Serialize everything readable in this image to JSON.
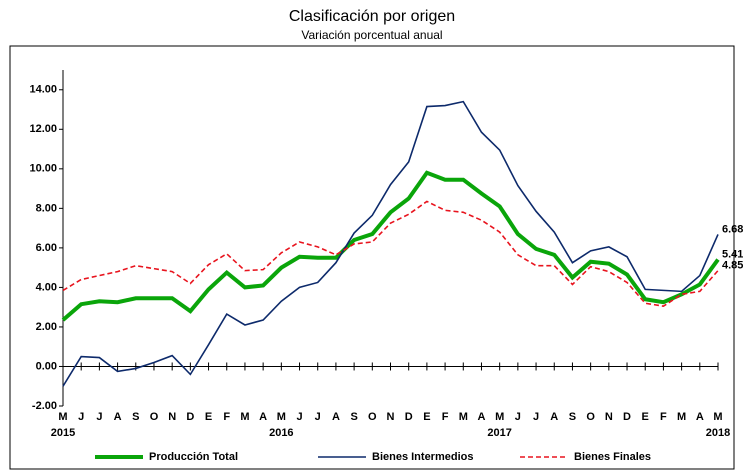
{
  "chart_data": {
    "type": "line",
    "title": "Clasificación por origen",
    "subtitle": "Variación porcentual anual",
    "categories": [
      "M",
      "J",
      "J",
      "A",
      "S",
      "O",
      "N",
      "D",
      "E",
      "F",
      "M",
      "A",
      "M",
      "J",
      "J",
      "A",
      "S",
      "O",
      "N",
      "D",
      "E",
      "F",
      "M",
      "A",
      "M",
      "J",
      "J",
      "A",
      "S",
      "O",
      "N",
      "D",
      "E",
      "F",
      "M",
      "A",
      "M"
    ],
    "year_row": [
      "2015",
      null,
      null,
      null,
      null,
      null,
      null,
      null,
      null,
      null,
      null,
      null,
      "2016",
      null,
      null,
      null,
      null,
      null,
      null,
      null,
      null,
      null,
      null,
      null,
      "2017",
      null,
      null,
      null,
      null,
      null,
      null,
      null,
      null,
      null,
      null,
      null,
      "2018"
    ],
    "ylim": [
      -2,
      15
    ],
    "yticks": [
      {
        "value": -2,
        "label": "-2.00"
      },
      {
        "value": 0,
        "label": "0.00"
      },
      {
        "value": 2,
        "label": "2.00"
      },
      {
        "value": 4,
        "label": "4.00"
      },
      {
        "value": 6,
        "label": "6.00"
      },
      {
        "value": 8,
        "label": "8.00"
      },
      {
        "value": 10,
        "label": "10.00"
      },
      {
        "value": 12,
        "label": "12.00"
      },
      {
        "value": 14,
        "label": "14.00"
      }
    ],
    "series": [
      {
        "name": "Producción Total",
        "color": "#0aa50a",
        "dashed": false,
        "width": 4,
        "values": [
          2.35,
          3.15,
          3.3,
          3.25,
          3.45,
          3.45,
          3.45,
          2.8,
          3.9,
          4.75,
          4.0,
          4.1,
          5.0,
          5.55,
          5.5,
          5.5,
          6.4,
          6.7,
          7.8,
          8.5,
          9.8,
          9.45,
          9.45,
          8.75,
          8.1,
          6.7,
          5.95,
          5.65,
          4.5,
          5.3,
          5.2,
          4.65,
          3.4,
          3.25,
          3.65,
          4.15,
          5.41
        ],
        "value_labels": [
          null,
          null,
          null,
          null,
          null,
          null,
          null,
          null,
          null,
          null,
          null,
          null,
          null,
          null,
          null,
          null,
          null,
          null,
          null,
          null,
          null,
          null,
          null,
          null,
          null,
          null,
          null,
          null,
          null,
          null,
          null,
          null,
          null,
          null,
          null,
          null,
          "5.41"
        ]
      },
      {
        "name": "Bienes Intermedios",
        "color": "#0d2a6b",
        "dashed": false,
        "width": 1.6,
        "values": [
          -1.0,
          0.5,
          0.45,
          -0.25,
          -0.1,
          0.2,
          0.55,
          -0.4,
          1.1,
          2.65,
          2.1,
          2.35,
          3.3,
          4.0,
          4.25,
          5.25,
          6.75,
          7.65,
          9.2,
          10.35,
          13.15,
          13.2,
          13.4,
          11.85,
          10.95,
          9.15,
          7.85,
          6.8,
          5.25,
          5.85,
          6.05,
          5.55,
          3.9,
          3.85,
          3.8,
          4.6,
          6.68
        ],
        "value_labels": [
          null,
          null,
          null,
          null,
          null,
          null,
          null,
          null,
          null,
          null,
          null,
          null,
          null,
          null,
          null,
          null,
          null,
          null,
          null,
          null,
          null,
          null,
          null,
          null,
          null,
          null,
          null,
          null,
          null,
          null,
          null,
          null,
          null,
          null,
          null,
          null,
          "6.68"
        ]
      },
      {
        "name": "Bienes Finales",
        "color": "#e8141e",
        "dashed": true,
        "width": 1.6,
        "values": [
          3.85,
          4.4,
          4.6,
          4.8,
          5.1,
          4.95,
          4.8,
          4.2,
          5.15,
          5.7,
          4.85,
          4.9,
          5.75,
          6.3,
          6.05,
          5.65,
          6.2,
          6.3,
          7.25,
          7.7,
          8.35,
          7.9,
          7.8,
          7.4,
          6.8,
          5.65,
          5.1,
          5.1,
          4.15,
          5.05,
          4.8,
          4.25,
          3.2,
          3.05,
          3.65,
          3.8,
          4.85
        ],
        "value_labels": [
          null,
          null,
          null,
          null,
          null,
          null,
          null,
          null,
          null,
          null,
          null,
          null,
          null,
          null,
          null,
          null,
          null,
          null,
          null,
          null,
          null,
          null,
          null,
          null,
          null,
          null,
          null,
          null,
          null,
          null,
          null,
          null,
          null,
          null,
          null,
          null,
          "4.85"
        ]
      }
    ]
  }
}
